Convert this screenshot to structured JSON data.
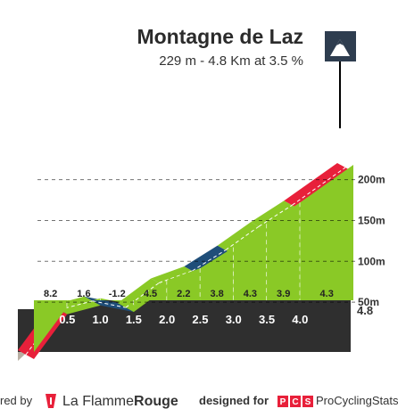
{
  "title": "Montagne de Laz",
  "subtitle": "229 m - 4.8 Km at 3.5 %",
  "footer": {
    "left_text": "red by",
    "brand_name": "La Flamme",
    "brand_name_bold": "Rouge",
    "designed_for": "designed for",
    "pcs_badge": "PCS",
    "pcs_name": "ProCyclingStats"
  },
  "colors": {
    "green": "#8ac926",
    "red": "#e8203a",
    "blue": "#1f4e79",
    "dark_band": "#2f2f2f",
    "grey_side": "#b8aea2"
  },
  "icons": [
    "summit-mountain-icon",
    "flamme-rouge-logo-icon"
  ],
  "chart_data": {
    "type": "area",
    "title": "Montagne de Laz",
    "subtitle": "229 m - 4.8 Km at 3.5 %",
    "x_unit": "km",
    "y_unit": "m",
    "xlim": [
      0,
      4.8
    ],
    "ylim": [
      0,
      229
    ],
    "y_ticks": [
      "50m",
      "100m",
      "150m",
      "200m"
    ],
    "y_tick_values": [
      50,
      100,
      150,
      200
    ],
    "x_ticks": [
      "0.5",
      "1.0",
      "1.5",
      "2.0",
      "2.5",
      "3.0",
      "3.5",
      "4.0"
    ],
    "x_tick_values": [
      0.5,
      1.0,
      1.5,
      2.0,
      2.5,
      3.0,
      3.5,
      4.0
    ],
    "end_label": "4.8",
    "segments": [
      {
        "from": 0.0,
        "to": 0.5,
        "gradient": "8.2",
        "color": "red"
      },
      {
        "from": 0.5,
        "to": 1.0,
        "gradient": "1.6",
        "color": "green"
      },
      {
        "from": 1.0,
        "to": 1.5,
        "gradient": "-1.2",
        "color": "blue"
      },
      {
        "from": 1.5,
        "to": 2.0,
        "gradient": "4.5",
        "color": "green"
      },
      {
        "from": 2.0,
        "to": 2.5,
        "gradient": "2.2",
        "color": "green"
      },
      {
        "from": 2.5,
        "to": 3.0,
        "gradient": "3.8",
        "color": "blue"
      },
      {
        "from": 3.0,
        "to": 3.5,
        "gradient": "4.3",
        "color": "green"
      },
      {
        "from": 3.5,
        "to": 4.0,
        "gradient": "3.9",
        "color": "green"
      },
      {
        "from": 4.0,
        "to": 4.8,
        "gradient": "4.3",
        "color": "red"
      }
    ]
  }
}
